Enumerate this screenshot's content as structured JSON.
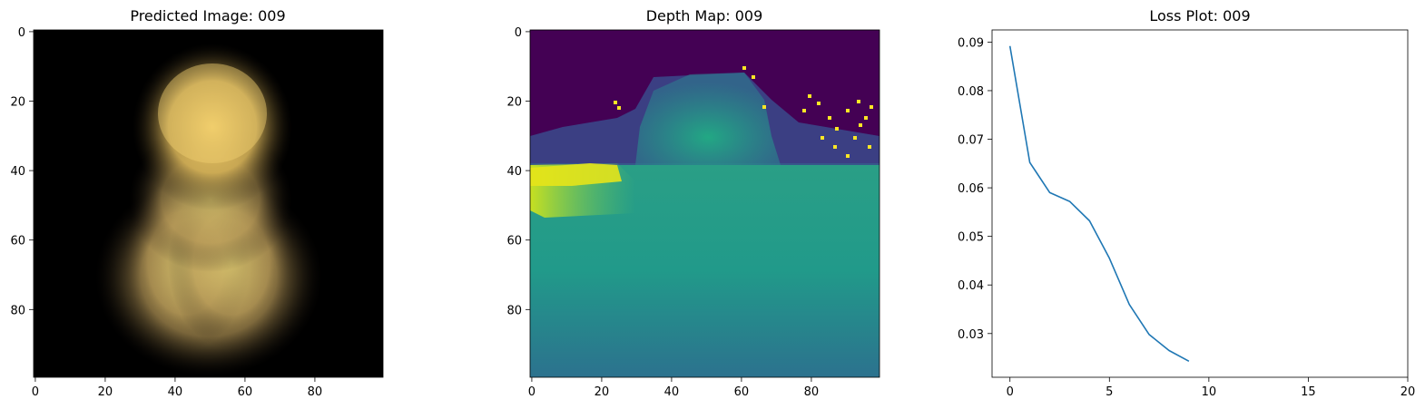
{
  "figure": {
    "panels": [
      {
        "title": "Predicted Image: 009"
      },
      {
        "title": "Depth Map: 009"
      },
      {
        "title": "Loss Plot: 009"
      }
    ]
  },
  "chart_data": [
    {
      "type": "heatmap",
      "title": "Predicted Image: 009",
      "description_kind": "rgb-image",
      "image_size": [
        100,
        100
      ],
      "xticks": [
        0,
        20,
        40,
        60,
        80
      ],
      "yticks": [
        0,
        20,
        40,
        60,
        80
      ],
      "xlim": [
        -0.5,
        99.5
      ],
      "ylim": [
        99.5,
        -0.5
      ],
      "colors": {
        "background": "#000000",
        "glow": "#e8c860",
        "highlight": "#f2d070"
      }
    },
    {
      "type": "heatmap",
      "title": "Depth Map: 009",
      "colormap": "viridis",
      "image_size": [
        100,
        100
      ],
      "xticks": [
        0,
        20,
        40,
        60,
        80
      ],
      "yticks": [
        0,
        20,
        40,
        60,
        80
      ],
      "xlim": [
        -0.5,
        99.5
      ],
      "ylim": [
        99.5,
        -0.5
      ],
      "colors": {
        "low": "#440154",
        "mid": "#21918c",
        "high": "#fde725"
      }
    },
    {
      "type": "line",
      "title": "Loss Plot: 009",
      "xlabel": "",
      "ylabel": "",
      "series": [
        {
          "x": [
            0,
            1,
            2,
            3,
            4,
            5,
            6,
            7,
            8,
            9
          ],
          "values": [
            0.0892,
            0.0652,
            0.059,
            0.0572,
            0.0532,
            0.0455,
            0.036,
            0.0298,
            0.0265,
            0.0243
          ],
          "color": "#1f77b4"
        }
      ],
      "xlim": [
        -0.9,
        20
      ],
      "ylim": [
        0.021,
        0.0925
      ],
      "xticks": [
        0,
        5,
        10,
        15,
        20
      ],
      "yticks": [
        0.03,
        0.04,
        0.05,
        0.06,
        0.07,
        0.08,
        0.09
      ],
      "ytick_labels": [
        "0.03",
        "0.04",
        "0.05",
        "0.06",
        "0.07",
        "0.08",
        "0.09"
      ],
      "grid": false
    }
  ]
}
